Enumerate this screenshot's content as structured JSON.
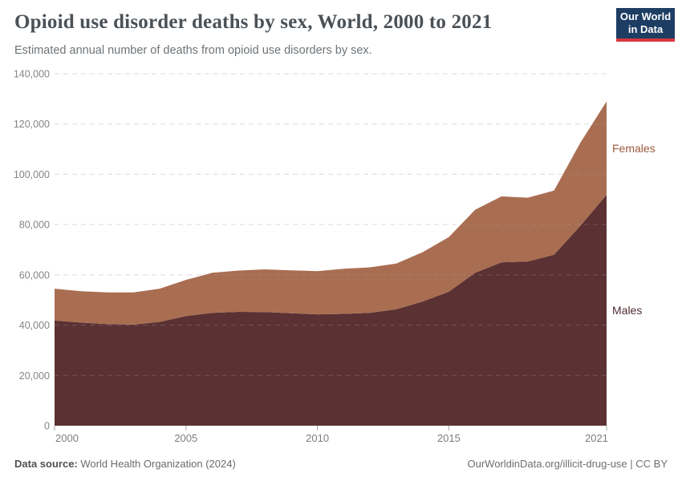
{
  "header": {
    "title": "Opioid use disorder deaths by sex, World, 2000 to 2021",
    "subtitle": "Estimated annual number of deaths from opioid use disorders by sex.",
    "logo": {
      "line1": "Our World",
      "line2": "in Data"
    }
  },
  "chart_data": {
    "type": "area",
    "stacked": true,
    "title": "Opioid use disorder deaths by sex, World, 2000 to 2021",
    "x": [
      2000,
      2001,
      2002,
      2003,
      2004,
      2005,
      2006,
      2007,
      2008,
      2009,
      2010,
      2011,
      2012,
      2013,
      2014,
      2015,
      2016,
      2017,
      2018,
      2019,
      2020,
      2021
    ],
    "series": [
      {
        "name": "Males",
        "color": "#5b3133",
        "label_color": "#4f2b30",
        "values": [
          41800,
          41000,
          40400,
          40200,
          41300,
          43600,
          44900,
          45300,
          45200,
          44700,
          44300,
          44500,
          44900,
          46300,
          49400,
          53300,
          60800,
          65000,
          65300,
          68000,
          79500,
          91800
        ]
      },
      {
        "name": "Females",
        "color": "#a96e52",
        "label_color": "#9c5a3b",
        "values": [
          12700,
          12500,
          12600,
          12800,
          13200,
          14400,
          15900,
          16400,
          17000,
          17100,
          17200,
          17900,
          18100,
          18200,
          19600,
          21700,
          25100,
          26200,
          25400,
          25500,
          33000,
          37200
        ]
      }
    ],
    "ylim": [
      0,
      140000
    ],
    "ytick_step": 20000,
    "ytick_labels": [
      "0",
      "20,000",
      "40,000",
      "60,000",
      "80,000",
      "100,000",
      "120,000",
      "140,000"
    ],
    "xticks": [
      2000,
      2005,
      2010,
      2015,
      2021
    ],
    "grid": "horizontal-dashed",
    "legend_position": "labels-at-right-edge",
    "grid_color": "#dcdcdc",
    "axis_text_color": "#7d7d7d"
  },
  "footer": {
    "source_label": "Data source:",
    "source_text": " World Health Organization (2024)",
    "credit": "OurWorldinData.org/illicit-drug-use | CC BY"
  }
}
